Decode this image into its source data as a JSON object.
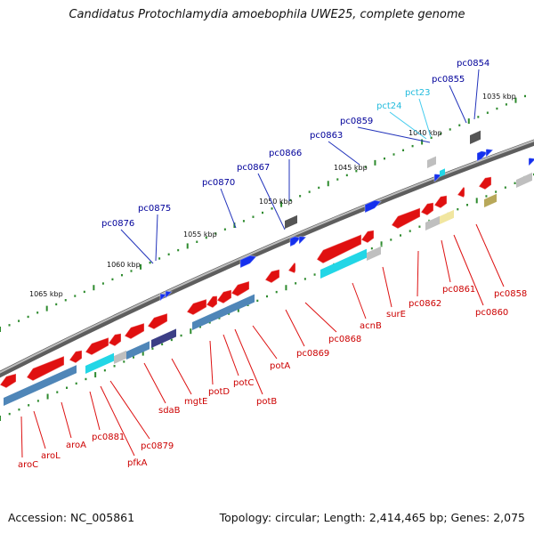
{
  "title": "Candidatus Protochlamydia amoebophila UWE25, complete genome",
  "accession": "Accession: NC_005861",
  "stats": "Topology: circular; Length: 2,414,465 bp; Genes: 2,075",
  "colors": {
    "reverse_label": "#cc0000",
    "forward_label": "#00009a",
    "rna_label": "#22bbdd",
    "tick": "#2e8b2e",
    "backbone": "#777777"
  },
  "kbp_labels": [
    "1035 kbp",
    "1040 kbp",
    "1045 kbp",
    "1050 kbp",
    "1055 kbp",
    "1060 kbp",
    "1065 kbp"
  ],
  "forward_genes": [
    "pc0854",
    "pc0855",
    "pct23",
    "pct24",
    "pc0859",
    "pc0863",
    "pc0866",
    "pc0867",
    "pc0870",
    "pc0875",
    "pc0876"
  ],
  "reverse_genes": [
    "aroC",
    "aroL",
    "aroA",
    "pc0881",
    "pfkA",
    "pc0879",
    "sdaB",
    "mgtE",
    "potD",
    "potC",
    "potB",
    "potA",
    "pc0869",
    "pc0868",
    "acnB",
    "surE",
    "pc0862",
    "pc0861",
    "pc0860",
    "pc0858"
  ]
}
